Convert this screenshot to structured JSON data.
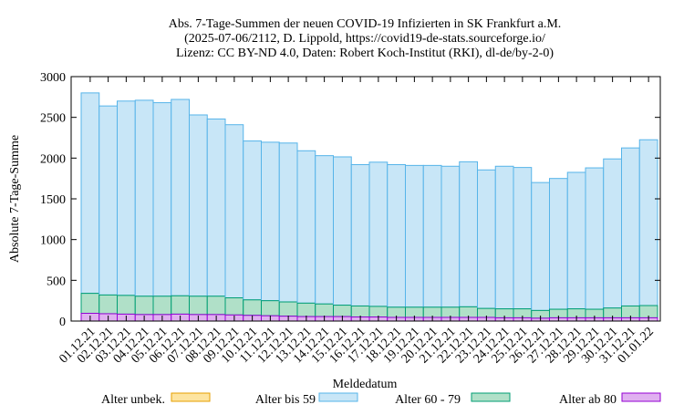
{
  "chart_data": {
    "type": "bar",
    "stacked": true,
    "title_lines": [
      "Abs. 7-Tage-Summen der neuen COVID-19 Infizierten in SK Frankfurt a.M.",
      "(2025-07-06/2112, D. Lippold, https://covid19-de-stats.sourceforge.io/",
      "Lizenz: CC BY-ND 4.0, Daten: Robert Koch-Institut (RKI), dl-de/by-2-0)"
    ],
    "xlabel": "Meldedatum",
    "ylabel": "Absolute 7-Tage-Summe",
    "ylim": [
      0,
      3000
    ],
    "yticks": [
      0,
      500,
      1000,
      1500,
      2000,
      2500,
      3000
    ],
    "grid": false,
    "legend_position": "bottom",
    "categories": [
      "01.12.21",
      "02.12.21",
      "03.12.21",
      "04.12.21",
      "05.12.21",
      "06.12.21",
      "07.12.21",
      "08.12.21",
      "09.12.21",
      "10.12.21",
      "11.12.21",
      "12.12.21",
      "13.12.21",
      "14.12.21",
      "15.12.21",
      "16.12.21",
      "17.12.21",
      "18.12.21",
      "19.12.21",
      "20.12.21",
      "21.12.21",
      "22.12.21",
      "23.12.21",
      "24.12.21",
      "25.12.21",
      "26.12.21",
      "27.12.21",
      "28.12.21",
      "29.12.21",
      "30.12.21",
      "31.12.21",
      "01.01.22"
    ],
    "series": [
      {
        "name": "Alter ab 80",
        "fill": "#e0b0f0",
        "stroke": "#9400d3",
        "values": [
          95,
          90,
          85,
          80,
          80,
          85,
          80,
          80,
          75,
          70,
          65,
          60,
          55,
          55,
          55,
          50,
          50,
          45,
          45,
          45,
          45,
          45,
          45,
          40,
          40,
          35,
          40,
          40,
          40,
          40,
          40,
          40
        ]
      },
      {
        "name": "Alter 60 - 79",
        "fill": "#b0e0c8",
        "stroke": "#009e73",
        "values": [
          245,
          230,
          230,
          225,
          225,
          225,
          225,
          225,
          210,
          190,
          185,
          175,
          165,
          155,
          140,
          135,
          130,
          125,
          125,
          125,
          125,
          130,
          110,
          110,
          110,
          95,
          105,
          110,
          105,
          120,
          145,
          150
        ]
      },
      {
        "name": "Alter bis 59",
        "fill": "#c8e6f7",
        "stroke": "#56b4e9",
        "values": [
          2460,
          2320,
          2385,
          2405,
          2375,
          2410,
          2225,
          2175,
          2125,
          1950,
          1945,
          1950,
          1870,
          1820,
          1820,
          1735,
          1770,
          1750,
          1740,
          1740,
          1730,
          1780,
          1700,
          1750,
          1735,
          1570,
          1605,
          1675,
          1735,
          1830,
          1940,
          2035
        ]
      },
      {
        "name": "Alter unbek.",
        "fill": "#fde4a0",
        "stroke": "#e69f00",
        "values": [
          0,
          0,
          0,
          0,
          0,
          0,
          0,
          0,
          0,
          0,
          0,
          0,
          0,
          0,
          0,
          0,
          0,
          0,
          0,
          0,
          0,
          0,
          0,
          0,
          0,
          0,
          0,
          0,
          0,
          0,
          0,
          0
        ]
      }
    ],
    "legend_order": [
      "Alter unbek.",
      "Alter bis 59",
      "Alter 60 - 79",
      "Alter ab 80"
    ]
  }
}
